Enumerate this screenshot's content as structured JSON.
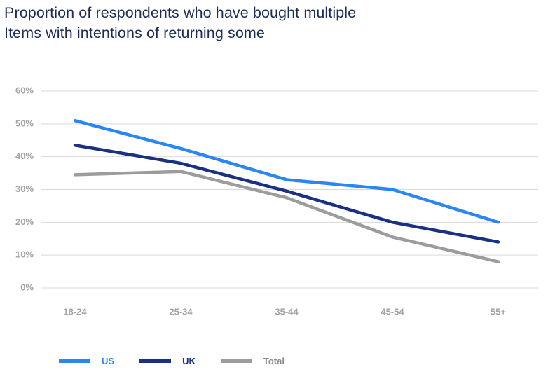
{
  "chart_data": {
    "type": "line",
    "title": "Proportion of respondents who have bought multiple Items with intentions of returning some",
    "title_lines": [
      "Proportion of respondents who have bought multiple",
      "Items with intentions of returning some"
    ],
    "categories": [
      "18-24",
      "25-34",
      "35-44",
      "45-54",
      "55+"
    ],
    "ylim": [
      0,
      60
    ],
    "y_ticks": [
      0,
      10,
      20,
      30,
      40,
      50,
      60
    ],
    "y_tick_labels": [
      "0%",
      "10%",
      "20%",
      "30%",
      "40%",
      "50%",
      "60%"
    ],
    "xlabel": "",
    "ylabel": "",
    "grid": true,
    "legend_position": "bottom-left",
    "series": [
      {
        "name": "US",
        "color": "#2b86f0",
        "values": [
          51,
          42.5,
          33,
          30,
          20
        ]
      },
      {
        "name": "UK",
        "color": "#1a3080",
        "values": [
          43.5,
          38,
          29.5,
          20,
          14
        ]
      },
      {
        "name": "Total",
        "color": "#9c9c9c",
        "values": [
          34.5,
          35.5,
          27.5,
          15.5,
          8
        ]
      }
    ]
  }
}
